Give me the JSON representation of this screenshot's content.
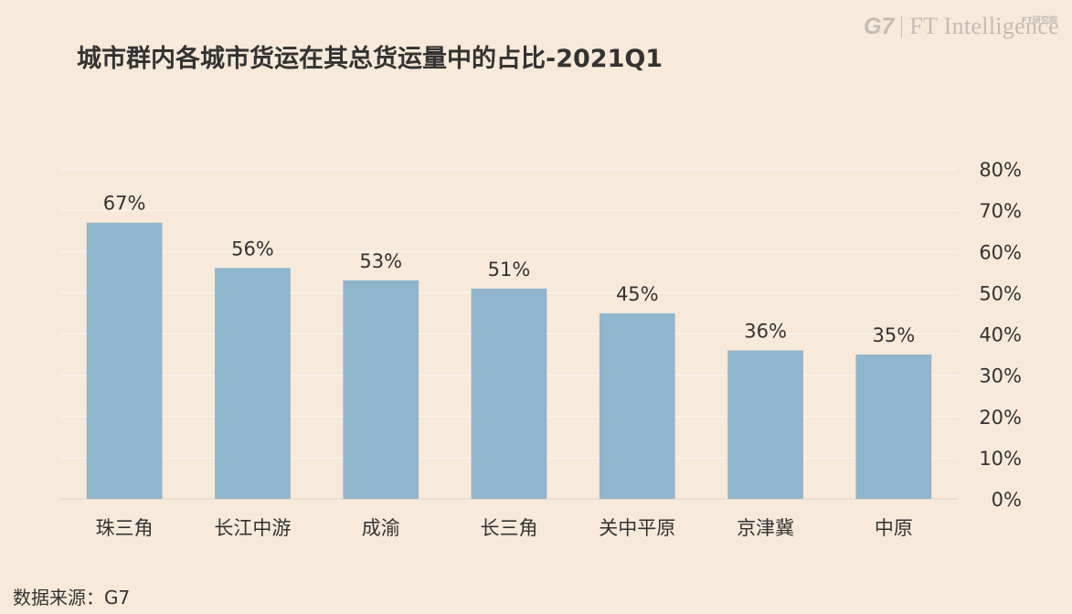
{
  "header": {
    "title": "城市群内各城市货运在其总货运量中的占比-2021Q1"
  },
  "logo": {
    "g7": "G7",
    "ft": "FT Intelligence",
    "cn": "FT研究院"
  },
  "footer": {
    "source": "数据来源：G7"
  },
  "chart_data": {
    "type": "bar",
    "title": "城市群内各城市货运在其总货运量中的占比-2021Q1",
    "categories": [
      "珠三角",
      "长江中游",
      "成渝",
      "长三角",
      "关中平原",
      "京津冀",
      "中原"
    ],
    "values": [
      67,
      56,
      53,
      51,
      45,
      36,
      35
    ],
    "data_labels": [
      "67%",
      "56%",
      "53%",
      "51%",
      "45%",
      "36%",
      "35%"
    ],
    "ylim": [
      0,
      80
    ],
    "yticks": [
      0,
      10,
      20,
      30,
      40,
      50,
      60,
      70,
      80
    ],
    "ytick_labels": [
      "0%",
      "10%",
      "20%",
      "30%",
      "40%",
      "50%",
      "60%",
      "70%",
      "80%"
    ],
    "y_axis_side": "right",
    "grid": true,
    "bar_color": "#8fb6cd",
    "grid_color": "#fbf5ee"
  }
}
